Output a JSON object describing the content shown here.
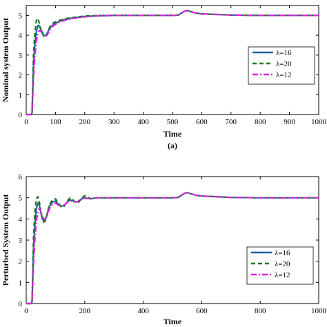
{
  "chart_data": [
    {
      "type": "line",
      "title": "",
      "caption": "(a)",
      "xlabel": "Time",
      "ylabel": "Nominal system Output",
      "xlim": [
        0,
        1000
      ],
      "ylim": [
        0,
        5.5
      ],
      "xticks": [
        0,
        100,
        200,
        300,
        400,
        500,
        600,
        700,
        800,
        900,
        1000
      ],
      "xtick_labels": [
        "0",
        "100",
        "200",
        "300",
        "400",
        "500",
        "600",
        "700",
        "800",
        "900",
        "1000"
      ],
      "yticks": [
        0,
        1,
        2,
        3,
        4,
        5
      ],
      "ytick_labels": [
        "0",
        "1",
        "2",
        "3",
        "4",
        "5"
      ],
      "grid": false,
      "legend_position": "right",
      "series": [
        {
          "name": "λ=16",
          "color": "#1f5fa0",
          "dash": "solid",
          "x": [
            0,
            18,
            20,
            25,
            30,
            35,
            40,
            45,
            50,
            55,
            60,
            65,
            70,
            75,
            80,
            90,
            100,
            120,
            150,
            200,
            250,
            300,
            400,
            500,
            520,
            540,
            550,
            560,
            580,
            600,
            700,
            800,
            900,
            1000
          ],
          "y": [
            0,
            0,
            0.1,
            2.6,
            3.6,
            4.2,
            4.5,
            4.45,
            4.3,
            4.15,
            4.0,
            3.98,
            4.05,
            4.2,
            4.35,
            4.5,
            4.6,
            4.75,
            4.85,
            4.95,
            4.98,
            5.0,
            5.0,
            5.0,
            5.02,
            5.2,
            5.25,
            5.2,
            5.12,
            5.08,
            5.02,
            5.0,
            5.0,
            5.0
          ]
        },
        {
          "name": "λ=20",
          "color": "#1a7a1a",
          "dash": "dashed",
          "x": [
            0,
            18,
            20,
            25,
            30,
            35,
            40,
            45,
            50,
            55,
            60,
            65,
            70,
            75,
            80,
            90,
            100,
            120,
            150,
            200,
            250,
            300,
            400,
            500,
            520,
            540,
            550,
            560,
            580,
            600,
            700,
            800,
            900,
            1000
          ],
          "y": [
            0,
            0,
            0.1,
            3.1,
            4.2,
            4.75,
            4.85,
            4.6,
            4.3,
            4.1,
            3.95,
            3.92,
            4.0,
            4.2,
            4.4,
            4.6,
            4.68,
            4.78,
            4.88,
            4.97,
            5.0,
            5.0,
            5.0,
            5.0,
            5.02,
            5.2,
            5.25,
            5.2,
            5.12,
            5.08,
            5.02,
            5.0,
            5.0,
            5.0
          ]
        },
        {
          "name": "λ=12",
          "color": "#e020e0",
          "dash": "dashdot",
          "x": [
            0,
            18,
            20,
            25,
            30,
            35,
            40,
            45,
            50,
            55,
            60,
            65,
            70,
            75,
            80,
            90,
            100,
            120,
            150,
            200,
            250,
            300,
            400,
            500,
            520,
            540,
            550,
            560,
            580,
            600,
            700,
            800,
            900,
            1000
          ],
          "y": [
            0,
            0,
            0.1,
            1.8,
            3.0,
            3.7,
            4.1,
            4.25,
            4.2,
            4.1,
            4.0,
            3.95,
            3.98,
            4.1,
            4.25,
            4.45,
            4.55,
            4.7,
            4.82,
            4.93,
            4.98,
            5.0,
            5.0,
            5.0,
            5.02,
            5.2,
            5.25,
            5.2,
            5.12,
            5.08,
            5.02,
            5.0,
            5.0,
            5.0
          ]
        }
      ]
    },
    {
      "type": "line",
      "title": "",
      "xlabel": "Time",
      "ylabel": "Perturbed System Output",
      "xlim": [
        0,
        1000
      ],
      "ylim": [
        0,
        6
      ],
      "xticks": [
        0,
        200,
        400,
        600,
        800,
        1000
      ],
      "xtick_labels": [
        "0",
        "200",
        "400",
        "600",
        "800",
        "1000"
      ],
      "yticks": [
        0,
        1,
        2,
        3,
        4,
        5,
        6
      ],
      "ytick_labels": [
        "0",
        "1",
        "2",
        "3",
        "4",
        "5",
        "6"
      ],
      "grid": false,
      "legend_position": "right",
      "series": [
        {
          "name": "λ=16",
          "color": "#1f5fa0",
          "dash": "solid",
          "x": [
            0,
            18,
            20,
            25,
            30,
            35,
            40,
            45,
            50,
            55,
            60,
            65,
            70,
            75,
            80,
            90,
            100,
            110,
            120,
            130,
            140,
            150,
            160,
            170,
            180,
            190,
            200,
            210,
            220,
            240,
            260,
            300,
            400,
            500,
            520,
            540,
            550,
            560,
            580,
            600,
            700,
            800,
            900,
            1000
          ],
          "y": [
            0,
            0,
            0.1,
            2.6,
            3.8,
            4.5,
            4.75,
            4.65,
            4.3,
            4.0,
            3.9,
            3.95,
            4.15,
            4.4,
            4.6,
            4.8,
            4.85,
            4.7,
            4.6,
            4.65,
            4.8,
            4.9,
            4.85,
            4.8,
            4.85,
            4.95,
            5.0,
            4.98,
            4.95,
            5.0,
            5.0,
            5.0,
            5.0,
            5.0,
            5.02,
            5.2,
            5.25,
            5.2,
            5.12,
            5.08,
            5.02,
            5.0,
            5.0,
            5.0
          ]
        },
        {
          "name": "λ=20",
          "color": "#1a7a1a",
          "dash": "dashed",
          "x": [
            0,
            18,
            20,
            25,
            30,
            35,
            40,
            45,
            50,
            55,
            60,
            65,
            70,
            75,
            80,
            90,
            100,
            110,
            120,
            130,
            140,
            150,
            160,
            170,
            180,
            190,
            200,
            210,
            220,
            240,
            260,
            300,
            400,
            500,
            520,
            540,
            550,
            560,
            580,
            600,
            700,
            800,
            900,
            1000
          ],
          "y": [
            0,
            0,
            0.1,
            3.2,
            4.4,
            4.95,
            5.05,
            4.8,
            4.35,
            4.0,
            3.85,
            3.9,
            4.15,
            4.45,
            4.7,
            4.9,
            4.95,
            4.75,
            4.55,
            4.6,
            4.85,
            5.0,
            4.9,
            4.75,
            4.8,
            5.0,
            5.1,
            5.05,
            4.95,
            5.0,
            5.0,
            5.0,
            5.0,
            5.0,
            5.02,
            5.2,
            5.25,
            5.2,
            5.12,
            5.08,
            5.02,
            5.0,
            5.0,
            5.0
          ]
        },
        {
          "name": "λ=12",
          "color": "#e020e0",
          "dash": "dashdot",
          "x": [
            0,
            18,
            20,
            25,
            30,
            35,
            40,
            45,
            50,
            55,
            60,
            65,
            70,
            75,
            80,
            90,
            100,
            110,
            120,
            130,
            140,
            150,
            160,
            170,
            180,
            190,
            200,
            210,
            220,
            240,
            260,
            300,
            400,
            500,
            520,
            540,
            550,
            560,
            580,
            600,
            700,
            800,
            900,
            1000
          ],
          "y": [
            0,
            0,
            0.1,
            1.8,
            3.1,
            3.9,
            4.35,
            4.5,
            4.35,
            4.15,
            4.0,
            4.0,
            4.1,
            4.3,
            4.5,
            4.7,
            4.75,
            4.65,
            4.6,
            4.65,
            4.78,
            4.85,
            4.82,
            4.8,
            4.85,
            4.92,
            4.97,
            4.97,
            4.96,
            5.0,
            5.0,
            5.0,
            5.0,
            5.0,
            5.02,
            5.2,
            5.25,
            5.2,
            5.12,
            5.08,
            5.02,
            5.0,
            5.0,
            5.0
          ]
        }
      ]
    }
  ]
}
